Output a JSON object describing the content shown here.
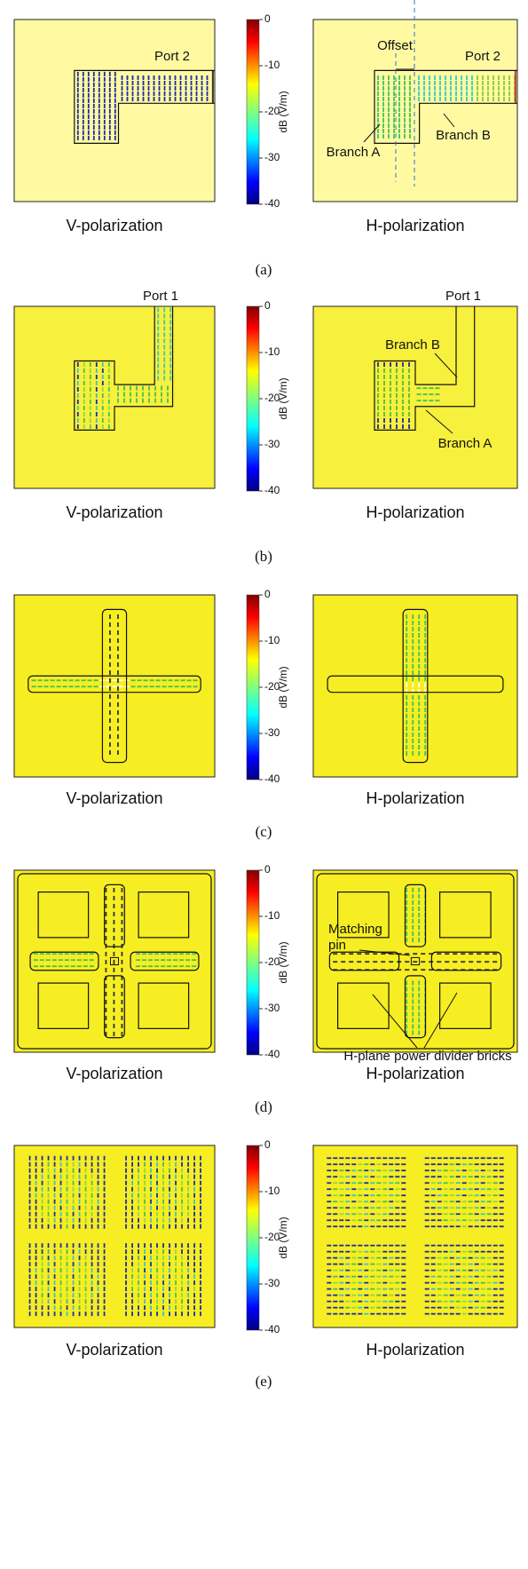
{
  "rows": [
    {
      "caption": "(a)",
      "left": {
        "label": "V-polarization",
        "annotations": [
          "Port 2"
        ]
      },
      "right": {
        "label": "H-polarization",
        "annotations": [
          "Port 2",
          "Offset",
          "Branch A",
          "Branch B"
        ]
      },
      "colorbar": {
        "label": "dB (V/m)",
        "ticks": [
          0,
          -10,
          -20,
          -30,
          -40
        ]
      }
    },
    {
      "caption": "(b)",
      "left": {
        "label": "V-polarization",
        "annotations": [
          "Port 1"
        ]
      },
      "right": {
        "label": "H-polarization",
        "annotations": [
          "Port 1",
          "Branch B",
          "Branch A"
        ]
      },
      "colorbar": {
        "label": "dB (V/m)",
        "ticks": [
          0,
          -10,
          -20,
          -30,
          -40
        ]
      }
    },
    {
      "caption": "(c)",
      "left": {
        "label": "V-polarization",
        "annotations": []
      },
      "right": {
        "label": "H-polarization",
        "annotations": []
      },
      "colorbar": {
        "label": "dB (V/m)",
        "ticks": [
          0,
          -10,
          -20,
          -30,
          -40
        ]
      }
    },
    {
      "caption": "(d)",
      "left": {
        "label": "V-polarization",
        "annotations": []
      },
      "right": {
        "label": "H-polarization",
        "annotations": [
          "Matching",
          "pin",
          "H-plane power divider bricks"
        ]
      },
      "colorbar": {
        "label": "dB (V/m)",
        "ticks": [
          0,
          -10,
          -20,
          -30,
          -40
        ]
      }
    },
    {
      "caption": "(e)",
      "left": {
        "label": "V-polarization",
        "annotations": []
      },
      "right": {
        "label": "H-polarization",
        "annotations": []
      },
      "colorbar": {
        "label": "dB (V/m)",
        "ticks": [
          0,
          -10,
          -20,
          -30,
          -40
        ]
      }
    }
  ]
}
